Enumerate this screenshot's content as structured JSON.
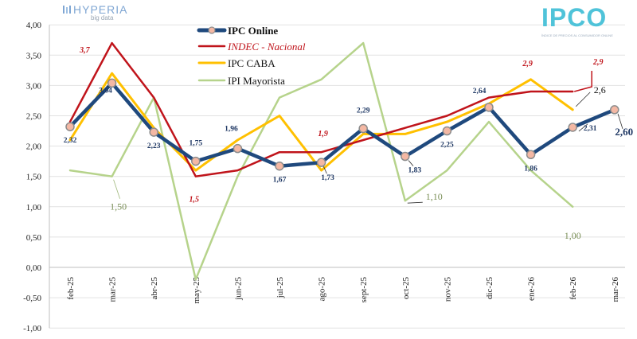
{
  "branding": {
    "left_logo_name": "HYPERIA",
    "left_logo_sub": "big data",
    "right_logo": "IPCO",
    "right_logo_sub": "ÍNDICE DE PRECIOS AL CONSUMIDOR ONLINE"
  },
  "colors": {
    "ipc_online": "#1f497d",
    "indec": "#c0141b",
    "caba": "#ffc000",
    "ipi": "#b6d38b",
    "marker_fill": "#f4b8a4",
    "marker_stroke": "#8c8c8c"
  },
  "chart_data": {
    "type": "line",
    "title": "",
    "xlabel": "",
    "ylabel": "",
    "ylim": [
      -1.0,
      4.0
    ],
    "yticks": [
      "4,00",
      "3,50",
      "3,00",
      "2,50",
      "2,00",
      "1,50",
      "1,00",
      "0,50",
      "0,00",
      "-0,50",
      "-1,00"
    ],
    "ytick_values": [
      4.0,
      3.5,
      3.0,
      2.5,
      2.0,
      1.5,
      1.0,
      0.5,
      0.0,
      -0.5,
      -1.0
    ],
    "categories": [
      "feb-25",
      "mar-25",
      "abr-25",
      "may-25",
      "jun-25",
      "jul-25",
      "ago-25",
      "sept-25",
      "oct-25",
      "nov-25",
      "dic-25",
      "ene-26",
      "feb-26",
      "mar-26"
    ],
    "legend_placement": "top-left",
    "series": [
      {
        "name": "IPC Online",
        "key": "ipc_online",
        "values": [
          2.32,
          3.04,
          2.23,
          1.75,
          1.96,
          1.67,
          1.73,
          2.29,
          1.83,
          2.25,
          2.64,
          1.86,
          2.31,
          2.6
        ],
        "labels": [
          "2,32",
          "3,04",
          "2,23",
          "1,75",
          "1,96",
          "1,67",
          "1,73",
          "2,29",
          "1,83",
          "2,25",
          "2,64",
          "1,86",
          "2,31",
          "2,60"
        ]
      },
      {
        "name": "INDEC - Nacional",
        "key": "indec",
        "values": [
          2.4,
          3.7,
          2.8,
          1.5,
          1.6,
          1.9,
          1.9,
          2.1,
          2.3,
          2.5,
          2.8,
          2.9,
          2.9,
          null
        ],
        "labels": {
          "1": "3,7",
          "3": "1,5",
          "6": "1,9",
          "11": "2,9",
          "12": "2,9"
        }
      },
      {
        "name": "IPC CABA",
        "key": "caba",
        "values": [
          2.1,
          3.2,
          2.3,
          1.6,
          2.1,
          2.5,
          1.6,
          2.2,
          2.2,
          2.4,
          2.7,
          3.1,
          2.6,
          null
        ],
        "labels": {
          "12": "2,6"
        }
      },
      {
        "name": "IPI Mayorista",
        "key": "ipi",
        "values": [
          1.6,
          1.5,
          2.8,
          -0.2,
          1.5,
          2.8,
          3.1,
          3.7,
          1.1,
          1.6,
          2.4,
          1.6,
          1.0,
          null
        ],
        "labels": {
          "1": "1,50",
          "8": "1,10",
          "12": "1,00"
        }
      }
    ]
  }
}
